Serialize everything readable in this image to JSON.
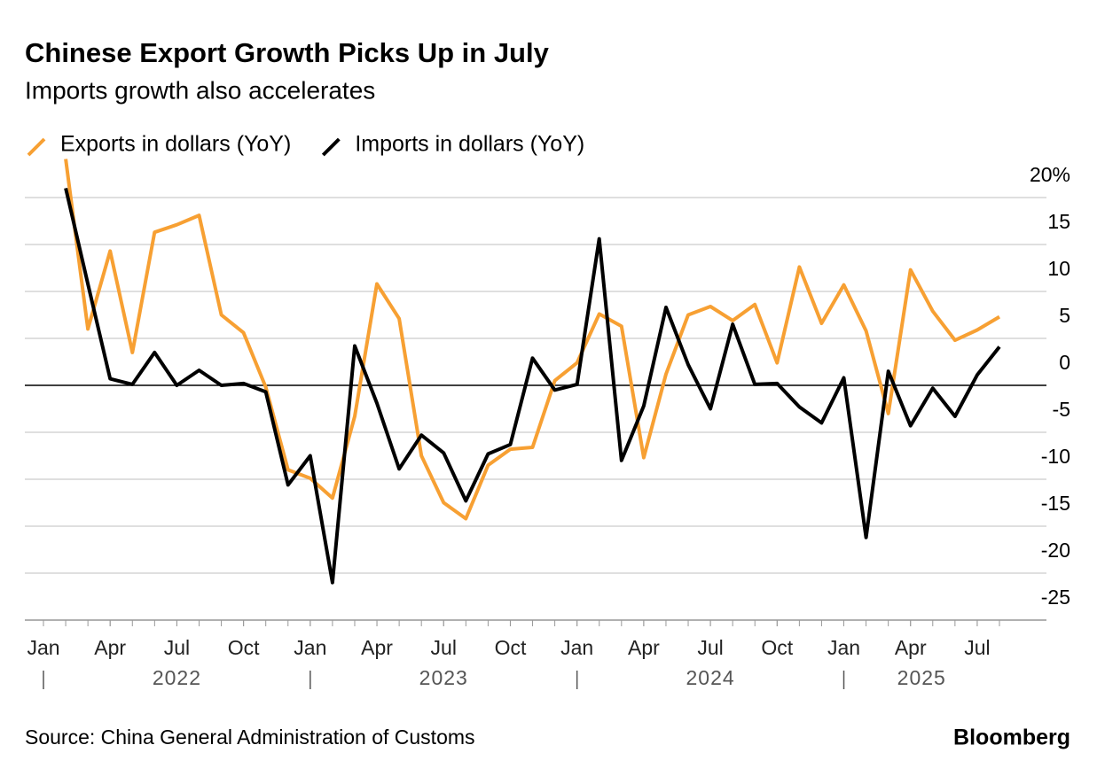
{
  "chart_data": {
    "type": "line",
    "title": "Chinese Export Growth Picks Up in July",
    "subtitle": "Imports growth also accelerates",
    "source": "Source: China General Administration of Customs",
    "brand": "Bloomberg",
    "legend": "top-left",
    "grid": true,
    "x": [
      "2022-02",
      "2022-03",
      "2022-04",
      "2022-05",
      "2022-06",
      "2022-07",
      "2022-08",
      "2022-09",
      "2022-10",
      "2022-11",
      "2022-12",
      "2023-01",
      "2023-02",
      "2023-03",
      "2023-04",
      "2023-05",
      "2023-06",
      "2023-07",
      "2023-08",
      "2023-09",
      "2023-10",
      "2023-11",
      "2023-12",
      "2024-01",
      "2024-02",
      "2024-03",
      "2024-04",
      "2024-05",
      "2024-06",
      "2024-07",
      "2024-08",
      "2024-09",
      "2024-10",
      "2024-11",
      "2024-12",
      "2025-01",
      "2025-02",
      "2025-03",
      "2025-04",
      "2025-05",
      "2025-06",
      "2025-07",
      "2025-08"
    ],
    "series": [
      {
        "name": "Exports in dollars (YoY)",
        "color": "#f7a033",
        "values": [
          24.1,
          6.0,
          14.3,
          3.5,
          16.3,
          17.1,
          18.1,
          7.5,
          5.6,
          -0.2,
          -9.0,
          -9.9,
          -12.0,
          -3.3,
          10.8,
          7.1,
          -7.5,
          -12.5,
          -14.2,
          -8.5,
          -6.8,
          -6.6,
          0.5,
          2.4,
          7.6,
          6.3,
          -7.7,
          1.2,
          7.5,
          8.4,
          6.9,
          8.6,
          2.4,
          12.6,
          6.6,
          10.7,
          5.8,
          -3.0,
          12.3,
          7.9,
          4.8,
          5.9,
          7.3
        ]
      },
      {
        "name": "Imports in dollars (YoY)",
        "color": "#000000",
        "values": [
          21.0,
          10.8,
          0.7,
          0.1,
          3.5,
          0,
          1.6,
          0,
          0.2,
          -0.7,
          -10.6,
          -7.5,
          -21.0,
          4.2,
          -1.9,
          -8.9,
          -5.3,
          -7.2,
          -12.3,
          -7.3,
          -6.3,
          2.9,
          -0.5,
          0.1,
          15.6,
          -8.0,
          -2.2,
          8.3,
          2.2,
          -2.5,
          6.5,
          0.1,
          0.2,
          -2.3,
          -4.0,
          0.8,
          -16.2,
          1.5,
          -4.3,
          -0.3,
          -3.3,
          1.1,
          4.1
        ]
      }
    ],
    "xlim": [
      "2022-01",
      "2025-08"
    ],
    "xticks": [
      {
        "value": "2022-01",
        "label": "Jan"
      },
      {
        "value": "2022-04",
        "label": "Apr"
      },
      {
        "value": "2022-07",
        "label": "Jul"
      },
      {
        "value": "2022-10",
        "label": "Oct"
      },
      {
        "value": "2023-01",
        "label": "Jan"
      },
      {
        "value": "2023-04",
        "label": "Apr"
      },
      {
        "value": "2023-07",
        "label": "Jul"
      },
      {
        "value": "2023-10",
        "label": "Oct"
      },
      {
        "value": "2024-01",
        "label": "Jan"
      },
      {
        "value": "2024-04",
        "label": "Apr"
      },
      {
        "value": "2024-07",
        "label": "Jul"
      },
      {
        "value": "2024-10",
        "label": "Oct"
      },
      {
        "value": "2025-01",
        "label": "Jan"
      },
      {
        "value": "2025-04",
        "label": "Apr"
      },
      {
        "value": "2025-07",
        "label": "Jul"
      }
    ],
    "years": [
      "2022",
      "2023",
      "2024",
      "2025"
    ],
    "ylim": [
      -25,
      20
    ],
    "yticks": [
      {
        "value": 20,
        "label": "20%"
      },
      15,
      10,
      5,
      0,
      -5,
      -10,
      -15,
      -20,
      -25
    ]
  }
}
